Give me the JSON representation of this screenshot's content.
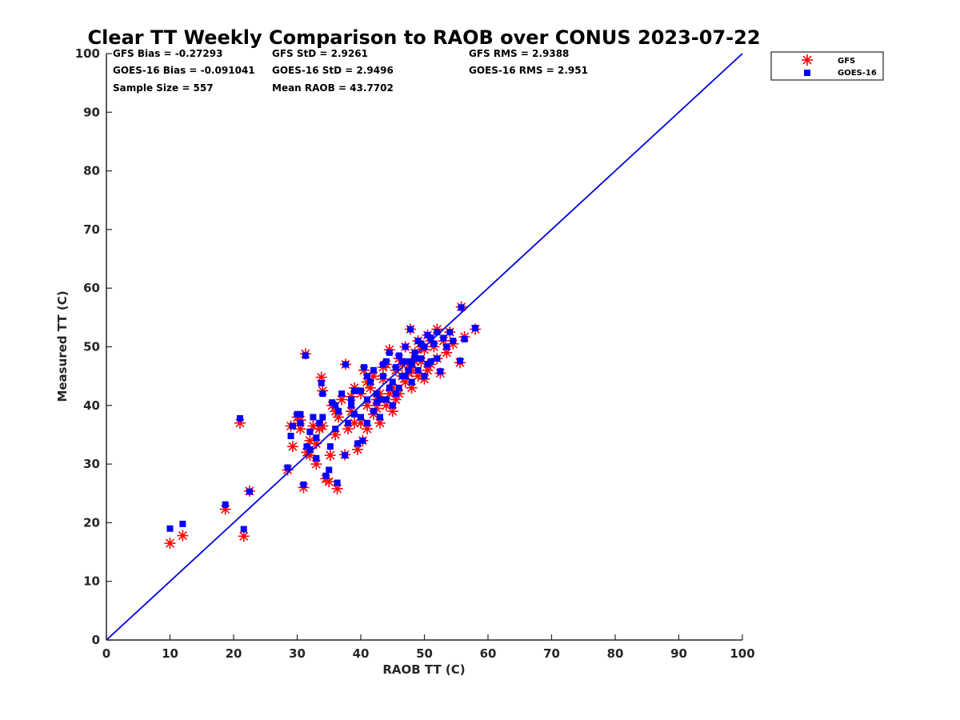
{
  "chart_data": {
    "type": "scatter",
    "title": "Clear TT Weekly Comparison to RAOB over CONUS 2023-07-22",
    "xlabel": "RAOB TT (C)",
    "ylabel": "Measured TT (C)",
    "xlim": [
      0,
      100
    ],
    "ylim": [
      0,
      100
    ],
    "xticks": [
      "0",
      "10",
      "20",
      "30",
      "40",
      "50",
      "60",
      "70",
      "80",
      "90",
      "100"
    ],
    "yticks": [
      "0",
      "10",
      "20",
      "30",
      "40",
      "50",
      "60",
      "70",
      "80",
      "90",
      "100"
    ],
    "grid": false,
    "legend_position": "outside-top-right",
    "reference_line": {
      "name": "1:1 line",
      "color": "#0000e6",
      "from": [
        0,
        0
      ],
      "to": [
        100,
        100
      ]
    },
    "stats": {
      "gfs_bias": "GFS Bias = -0.27293",
      "gfs_std": "GFS StD = 2.9261",
      "gfs_rms": "GFS RMS = 2.9388",
      "goes_bias": "GOES-16 Bias = -0.091041",
      "goes_std": "GOES-16 StD = 2.9496",
      "goes_rms": "GOES-16 RMS = 2.951",
      "sample_size": "Sample Size = 557",
      "mean_raob": "Mean RAOB = 43.7702"
    },
    "series": [
      {
        "name": "GFS",
        "marker": "asterisk",
        "color": "#ff0000"
      },
      {
        "name": "GOES-16",
        "marker": "square",
        "color": "#0000ff"
      }
    ],
    "points_note_columns": [
      "raob",
      "gfs",
      "goes16"
    ],
    "points": [
      [
        10,
        16.5,
        19
      ],
      [
        12,
        17.8,
        19.8
      ],
      [
        18.7,
        22.3,
        23.1
      ],
      [
        21,
        37,
        37.8
      ],
      [
        21.6,
        17.7,
        18.9
      ],
      [
        22.5,
        25.4,
        25.3
      ],
      [
        28.5,
        29,
        29.4
      ],
      [
        29,
        36.5,
        34.8
      ],
      [
        29.3,
        33,
        36.5
      ],
      [
        30,
        38,
        38.5
      ],
      [
        30.5,
        36,
        37
      ],
      [
        31,
        26,
        26.5
      ],
      [
        31.3,
        48.8,
        48.5
      ],
      [
        31.5,
        32,
        33
      ],
      [
        32,
        34,
        35.5
      ],
      [
        32.5,
        36.5,
        38
      ],
      [
        33,
        30,
        31
      ],
      [
        33.5,
        36,
        37
      ],
      [
        33.8,
        44.8,
        43.8
      ],
      [
        34,
        42.5,
        42
      ],
      [
        34.5,
        27.5,
        28
      ],
      [
        35,
        27,
        29
      ],
      [
        35.2,
        31.5,
        33
      ],
      [
        35.5,
        40,
        40.5
      ],
      [
        36,
        35,
        36
      ],
      [
        36.3,
        25.8,
        26.8
      ],
      [
        36.5,
        38,
        39
      ],
      [
        37,
        41,
        42
      ],
      [
        37.5,
        31.6,
        31.5
      ],
      [
        37.6,
        47,
        47
      ],
      [
        38,
        36,
        37
      ],
      [
        38.5,
        39,
        40
      ],
      [
        39,
        43,
        42.5
      ],
      [
        39.5,
        32.5,
        33.5
      ],
      [
        40,
        37,
        38
      ],
      [
        40.3,
        34,
        34
      ],
      [
        40.5,
        46,
        46.5
      ],
      [
        41,
        40,
        41
      ],
      [
        41,
        36,
        37
      ],
      [
        41.5,
        43,
        44
      ],
      [
        42,
        38.5,
        39
      ],
      [
        42,
        45,
        46
      ],
      [
        42.5,
        41,
        42
      ],
      [
        43,
        37,
        38
      ],
      [
        43,
        42,
        41
      ],
      [
        43.5,
        44.5,
        45
      ],
      [
        44,
        40,
        41
      ],
      [
        44,
        47,
        47.5
      ],
      [
        44.5,
        49.5,
        49
      ],
      [
        45,
        43,
        44
      ],
      [
        45,
        39,
        40
      ],
      [
        45.5,
        46,
        46.5
      ],
      [
        46,
        42,
        43
      ],
      [
        46,
        48,
        48.5
      ],
      [
        46.5,
        45,
        45
      ],
      [
        47,
        44,
        45
      ],
      [
        47,
        50,
        50
      ],
      [
        47.5,
        47,
        47.5
      ],
      [
        47.8,
        53,
        53
      ],
      [
        48,
        43,
        44
      ],
      [
        48,
        46,
        47
      ],
      [
        48.5,
        49,
        49
      ],
      [
        49,
        45,
        46
      ],
      [
        49,
        51,
        51
      ],
      [
        49.5,
        47.5,
        48
      ],
      [
        50,
        44.5,
        45
      ],
      [
        50,
        49.5,
        50
      ],
      [
        50.5,
        52,
        52
      ],
      [
        51,
        47,
        47.5
      ],
      [
        51.5,
        50,
        50.5
      ],
      [
        52,
        53,
        52.5
      ],
      [
        52,
        48,
        48
      ],
      [
        52.5,
        45.5,
        45.8
      ],
      [
        53,
        51,
        51.5
      ],
      [
        53.5,
        49,
        50
      ],
      [
        54,
        52.5,
        52.5
      ],
      [
        54.5,
        50.5,
        51
      ],
      [
        55.6,
        47.3,
        47.6
      ],
      [
        55.8,
        56.8,
        56.7
      ],
      [
        56.3,
        51.7,
        51.3
      ],
      [
        58,
        53,
        53.2
      ],
      [
        38.5,
        41.5,
        41
      ],
      [
        39,
        37,
        38.5
      ],
      [
        40,
        42,
        42.5
      ],
      [
        41,
        44,
        45
      ],
      [
        42.5,
        39.5,
        40.5
      ],
      [
        43.5,
        46.5,
        47
      ],
      [
        44.5,
        42,
        43
      ],
      [
        45.5,
        41,
        42
      ],
      [
        46.5,
        47,
        47.5
      ],
      [
        47.5,
        45.5,
        46
      ],
      [
        48.5,
        47.5,
        48
      ],
      [
        49.5,
        50,
        50.5
      ],
      [
        50.5,
        46,
        47
      ],
      [
        51,
        51,
        51.5
      ],
      [
        36,
        39,
        40
      ],
      [
        34,
        36.5,
        38
      ],
      [
        33,
        33.5,
        34.5
      ],
      [
        32,
        31.5,
        32.5
      ],
      [
        30.5,
        37.5,
        38.5
      ]
    ]
  }
}
